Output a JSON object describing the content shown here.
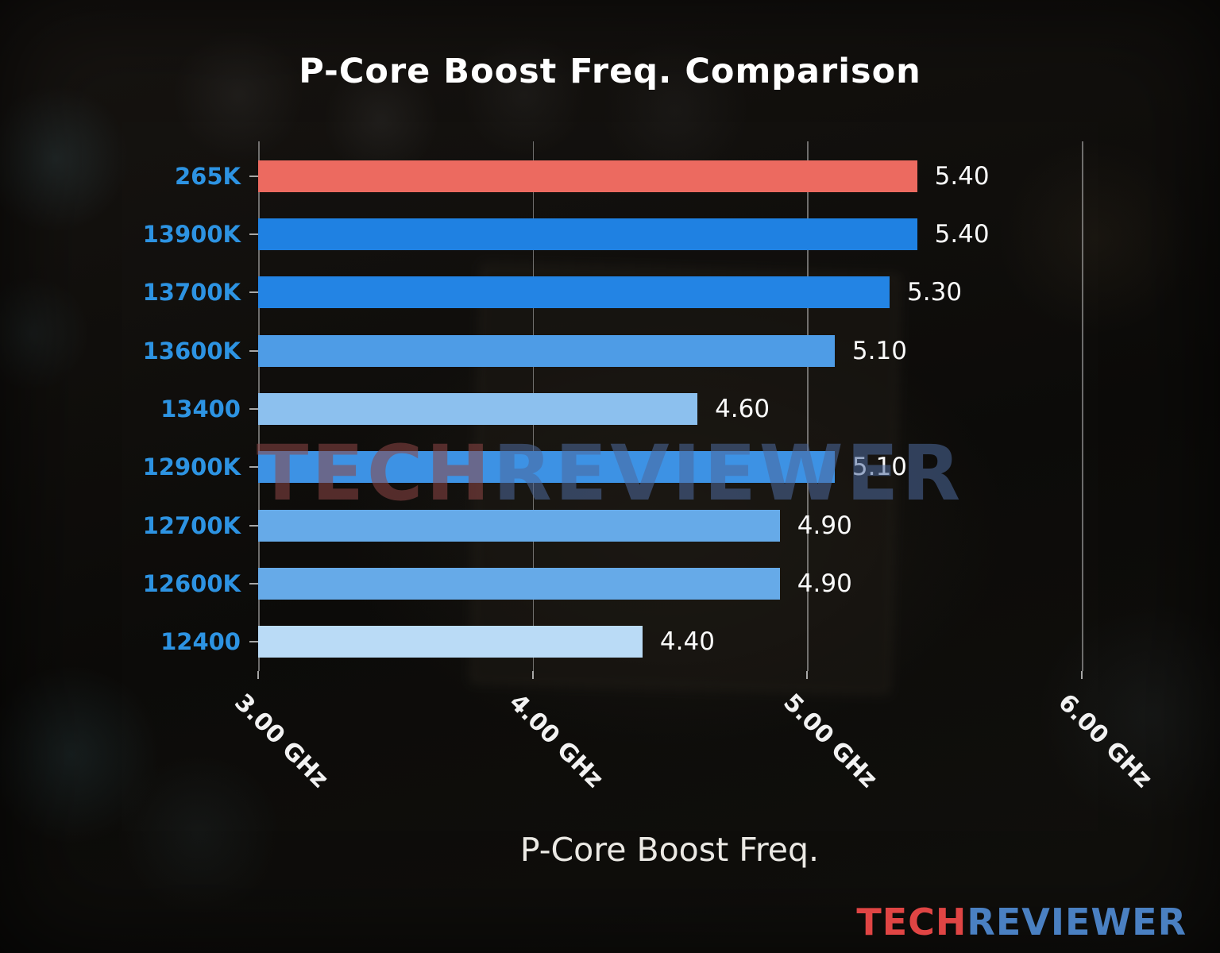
{
  "chart_data": {
    "type": "bar",
    "orientation": "horizontal",
    "title": "P-Core Boost Freq. Comparison",
    "xlabel": "P-Core Boost Freq.",
    "ylabel": "",
    "categories": [
      "265K",
      "13900K",
      "13700K",
      "13600K",
      "13400",
      "12900K",
      "12700K",
      "12600K",
      "12400"
    ],
    "values": [
      5.4,
      5.4,
      5.3,
      5.1,
      4.6,
      5.1,
      4.9,
      4.9,
      4.4
    ],
    "value_labels": [
      "5.40",
      "5.40",
      "5.30",
      "5.10",
      "4.60",
      "5.10",
      "4.90",
      "4.90",
      "4.40"
    ],
    "bar_colors": [
      "#ec6a60",
      "#1f81e2",
      "#2384e4",
      "#4e9ce6",
      "#8cc0ee",
      "#3d92e4",
      "#66aae8",
      "#66aae8",
      "#badbf6"
    ],
    "xlim": [
      3.0,
      6.0
    ],
    "x_ticks": [
      "3.00 GHz",
      "4.00 GHz",
      "5.00 GHz",
      "6.00 GHz"
    ],
    "x_tick_values": [
      3,
      4,
      5,
      6
    ],
    "grid": "vertical-gridlines-on",
    "legend": "none"
  },
  "colors": {
    "highlight_bar": "#ec6a60",
    "series_blue": "#1f81e2",
    "category_label": "#2d93e2",
    "value_label": "#fafafa",
    "title": "#ffffff",
    "gridline": "#cdcdcd",
    "watermark_red": "#8e4646",
    "watermark_blue": "#4d6a9e",
    "logo_red": "#e04544",
    "logo_blue": "#4a80c2"
  },
  "watermark": {
    "left": "TECH",
    "right": "REVIEWER"
  },
  "logo": {
    "left": "TECH",
    "right": "REVIEWER"
  }
}
